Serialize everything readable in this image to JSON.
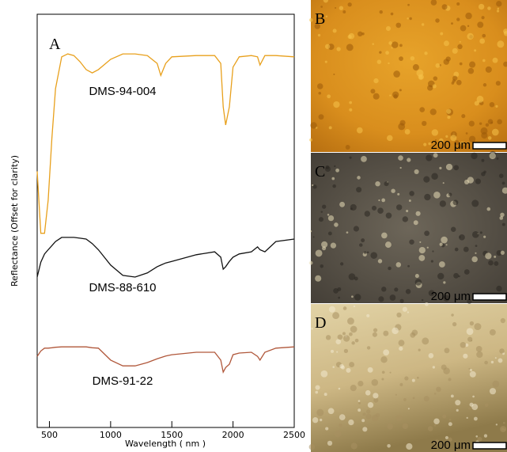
{
  "chart_data": {
    "type": "line",
    "annotation": "A",
    "xlabel": "Wavelength ( nm )",
    "ylabel": "Reflectance (Offset for clarity)",
    "x": [
      400,
      430,
      460,
      490,
      520,
      550,
      600,
      650,
      700,
      750,
      800,
      850,
      900,
      1000,
      1100,
      1200,
      1300,
      1380,
      1410,
      1450,
      1500,
      1700,
      1850,
      1900,
      1920,
      1940,
      1970,
      2000,
      2050,
      2150,
      2200,
      2220,
      2260,
      2350,
      2500
    ],
    "series": [
      {
        "name": "DMS-94-004",
        "color": "#e8a01c",
        "values": [
          62,
          47,
          47,
          55,
          70,
          82,
          89.7,
          90.4,
          90,
          88.5,
          86.6,
          85.8,
          86.6,
          89.1,
          90.4,
          90.4,
          90,
          88.1,
          85.2,
          88.1,
          89.7,
          90,
          90,
          88.1,
          77.6,
          73.2,
          77.6,
          87.2,
          89.7,
          90,
          89.7,
          87.7,
          90,
          90,
          89.7
        ]
      },
      {
        "name": "DMS-88-610",
        "color": "#111111",
        "values": [
          36.4,
          40,
          42,
          43,
          44,
          45,
          46,
          46,
          46,
          45.8,
          45.6,
          44.5,
          43,
          39.3,
          36.8,
          36.4,
          37.4,
          38.9,
          39.3,
          39.8,
          40.2,
          41.8,
          42.5,
          41.2,
          38.3,
          38.9,
          40.2,
          41.2,
          42,
          42.5,
          43.7,
          43,
          42.5,
          45,
          45.6
        ]
      },
      {
        "name": "DMS-91-22",
        "color": "#b0573a",
        "values": [
          17.2,
          18.5,
          19.2,
          19.2,
          19.3,
          19.4,
          19.5,
          19.5,
          19.5,
          19.5,
          19.5,
          19.3,
          19.2,
          16.3,
          14.9,
          14.9,
          15.7,
          16.6,
          16.9,
          17.3,
          17.6,
          18.2,
          18.2,
          16.3,
          13.4,
          14.5,
          15.3,
          17.6,
          18,
          18.2,
          17.2,
          16.3,
          18.2,
          19.2,
          19.5
        ]
      }
    ],
    "xlim": [
      400,
      2500
    ],
    "ylim": [
      0,
      100
    ],
    "xticks": [
      500,
      1000,
      1500,
      2000,
      2500
    ]
  },
  "panels": [
    {
      "label": "B",
      "scale": "200 μm"
    },
    {
      "label": "C",
      "scale": "200 μm"
    },
    {
      "label": "D",
      "scale": "200 μm"
    }
  ]
}
